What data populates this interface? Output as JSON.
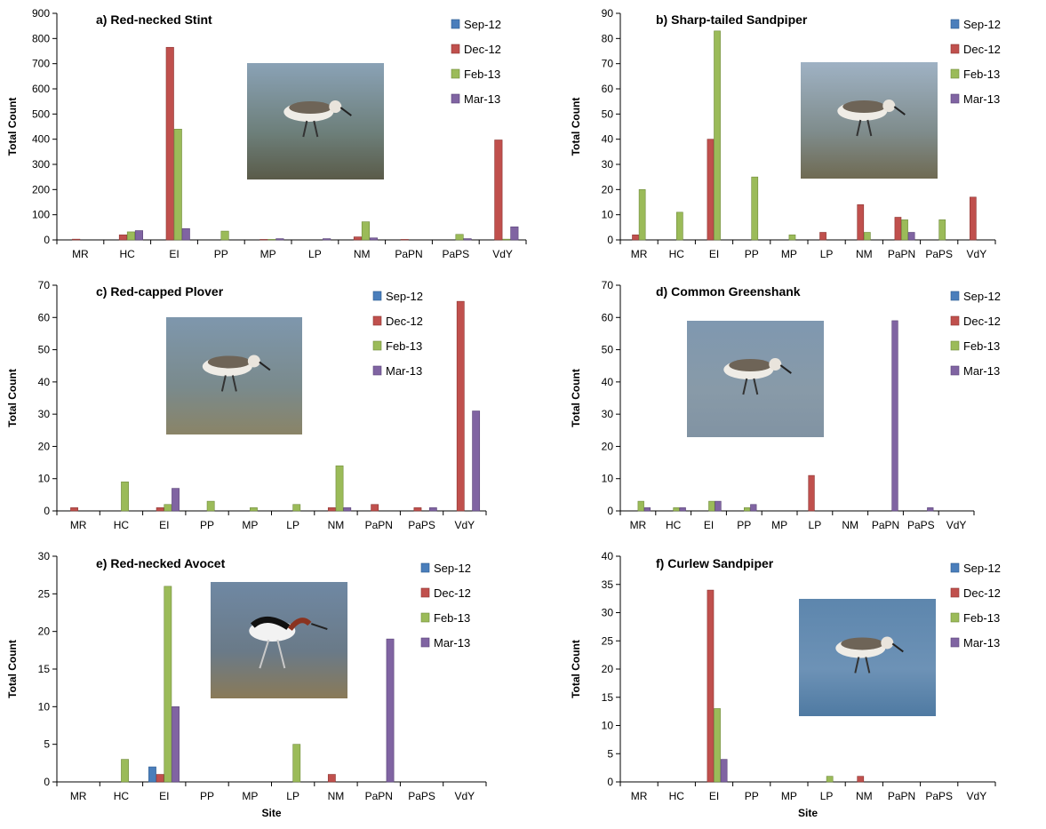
{
  "legend_labels": [
    "Sep-12",
    "Dec-12",
    "Feb-13",
    "Mar-13"
  ],
  "colors": {
    "series": [
      "#4a7ebb",
      "#c0504d",
      "#9bbb59",
      "#8064a2"
    ],
    "series_edge": [
      "#2c5a8e",
      "#8c3532",
      "#6f8a3a",
      "#5a4478"
    ]
  },
  "chart_data": [
    {
      "type": "bar",
      "title": "a) Red-necked Stint",
      "ylabel": "Total Count",
      "xlabel": "",
      "ylim": [
        0,
        900
      ],
      "yticks": [
        0,
        100,
        200,
        300,
        400,
        500,
        600,
        700,
        800,
        900
      ],
      "categories": [
        "MR",
        "HC",
        "EI",
        "PP",
        "MP",
        "LP",
        "NM",
        "PaPN",
        "PaPS",
        "VdY"
      ],
      "legend": "top-right",
      "photo": "red-necked-stint-photo",
      "series": [
        {
          "name": "Sep-12",
          "values": [
            0,
            0,
            0,
            0,
            0,
            0,
            0,
            0,
            0,
            0
          ]
        },
        {
          "name": "Dec-12",
          "values": [
            3,
            20,
            765,
            0,
            2,
            0,
            12,
            2,
            0,
            397
          ]
        },
        {
          "name": "Feb-13",
          "values": [
            0,
            32,
            440,
            35,
            2,
            0,
            72,
            0,
            22,
            3
          ]
        },
        {
          "name": "Mar-13",
          "values": [
            0,
            37,
            45,
            0,
            5,
            5,
            8,
            0,
            5,
            52
          ]
        }
      ]
    },
    {
      "type": "bar",
      "title": "b) Sharp-tailed Sandpiper",
      "ylabel": "Total Count",
      "xlabel": "",
      "ylim": [
        0,
        90
      ],
      "yticks": [
        0,
        10,
        20,
        30,
        40,
        50,
        60,
        70,
        80,
        90
      ],
      "categories": [
        "MR",
        "HC",
        "EI",
        "PP",
        "MP",
        "LP",
        "NM",
        "PaPN",
        "PaPS",
        "VdY"
      ],
      "legend": "top-right",
      "photo": "sharp-tailed-sandpiper-photo",
      "series": [
        {
          "name": "Sep-12",
          "values": [
            0,
            0,
            0,
            0,
            0,
            0,
            0,
            0,
            0,
            0
          ]
        },
        {
          "name": "Dec-12",
          "values": [
            2,
            0,
            40,
            0,
            0,
            3,
            14,
            9,
            0,
            17
          ]
        },
        {
          "name": "Feb-13",
          "values": [
            20,
            11,
            83,
            25,
            2,
            0,
            3,
            8,
            8,
            0
          ]
        },
        {
          "name": "Mar-13",
          "values": [
            0,
            0,
            0,
            0,
            0,
            0,
            0,
            3,
            0,
            0
          ]
        }
      ]
    },
    {
      "type": "bar",
      "title": "c) Red-capped Plover",
      "ylabel": "Total Count",
      "xlabel": "",
      "ylim": [
        0,
        70
      ],
      "yticks": [
        0,
        10,
        20,
        30,
        40,
        50,
        60,
        70
      ],
      "categories": [
        "MR",
        "HC",
        "EI",
        "PP",
        "MP",
        "LP",
        "NM",
        "PaPN",
        "PaPS",
        "VdY"
      ],
      "legend": "top-right",
      "photo": "red-capped-plover-photo",
      "series": [
        {
          "name": "Sep-12",
          "values": [
            0,
            0,
            0,
            0,
            0,
            0,
            0,
            0,
            0,
            0
          ]
        },
        {
          "name": "Dec-12",
          "values": [
            1,
            0,
            1,
            0,
            0,
            0,
            1,
            2,
            1,
            65
          ]
        },
        {
          "name": "Feb-13",
          "values": [
            0,
            9,
            2,
            3,
            1,
            2,
            14,
            0,
            0,
            0
          ]
        },
        {
          "name": "Mar-13",
          "values": [
            0,
            0,
            7,
            0,
            0,
            0,
            1,
            0,
            1,
            31
          ]
        }
      ]
    },
    {
      "type": "bar",
      "title": "d) Common Greenshank",
      "ylabel": "Total Count",
      "xlabel": "",
      "ylim": [
        0,
        70
      ],
      "yticks": [
        0,
        10,
        20,
        30,
        40,
        50,
        60,
        70
      ],
      "categories": [
        "MR",
        "HC",
        "EI",
        "PP",
        "MP",
        "LP",
        "NM",
        "PaPN",
        "PaPS",
        "VdY"
      ],
      "legend": "top-right",
      "photo": "common-greenshank-photo",
      "series": [
        {
          "name": "Sep-12",
          "values": [
            0,
            0,
            0,
            0,
            0,
            0,
            0,
            0,
            0,
            0
          ]
        },
        {
          "name": "Dec-12",
          "values": [
            0,
            0,
            0,
            0,
            0,
            11,
            0,
            0,
            0,
            0
          ]
        },
        {
          "name": "Feb-13",
          "values": [
            3,
            1,
            3,
            1,
            0,
            0,
            0,
            0,
            0,
            0
          ]
        },
        {
          "name": "Mar-13",
          "values": [
            1,
            1,
            3,
            2,
            0,
            0,
            0,
            59,
            1,
            0
          ]
        }
      ]
    },
    {
      "type": "bar",
      "title": "e) Red-necked Avocet",
      "ylabel": "Total Count",
      "xlabel": "Site",
      "ylim": [
        0,
        30
      ],
      "yticks": [
        0,
        5,
        10,
        15,
        20,
        25,
        30
      ],
      "categories": [
        "MR",
        "HC",
        "EI",
        "PP",
        "MP",
        "LP",
        "NM",
        "PaPN",
        "PaPS",
        "VdY"
      ],
      "legend": "top-right",
      "photo": "red-necked-avocet-photo",
      "series": [
        {
          "name": "Sep-12",
          "values": [
            0,
            0,
            2,
            0,
            0,
            0,
            0,
            0,
            0,
            0
          ]
        },
        {
          "name": "Dec-12",
          "values": [
            0,
            0,
            1,
            0,
            0,
            0,
            1,
            0,
            0,
            0
          ]
        },
        {
          "name": "Feb-13",
          "values": [
            0,
            3,
            26,
            0,
            0,
            5,
            0,
            0,
            0,
            0
          ]
        },
        {
          "name": "Mar-13",
          "values": [
            0,
            0,
            10,
            0,
            0,
            0,
            0,
            19,
            0,
            0
          ]
        }
      ]
    },
    {
      "type": "bar",
      "title": "f) Curlew Sandpiper",
      "ylabel": "Total Count",
      "xlabel": "Site",
      "ylim": [
        0,
        40
      ],
      "yticks": [
        0,
        5,
        10,
        15,
        20,
        25,
        30,
        35,
        40
      ],
      "categories": [
        "MR",
        "HC",
        "EI",
        "PP",
        "MP",
        "LP",
        "NM",
        "PaPN",
        "PaPS",
        "VdY"
      ],
      "legend": "top-right",
      "photo": "curlew-sandpiper-photo",
      "series": [
        {
          "name": "Sep-12",
          "values": [
            0,
            0,
            0,
            0,
            0,
            0,
            0,
            0,
            0,
            0
          ]
        },
        {
          "name": "Dec-12",
          "values": [
            0,
            0,
            34,
            0,
            0,
            0,
            1,
            0,
            0,
            0
          ]
        },
        {
          "name": "Feb-13",
          "values": [
            0,
            0,
            13,
            0,
            0,
            1,
            0,
            0,
            0,
            0
          ]
        },
        {
          "name": "Mar-13",
          "values": [
            0,
            0,
            4,
            0,
            0,
            0,
            0,
            0,
            0,
            0
          ]
        }
      ]
    }
  ]
}
